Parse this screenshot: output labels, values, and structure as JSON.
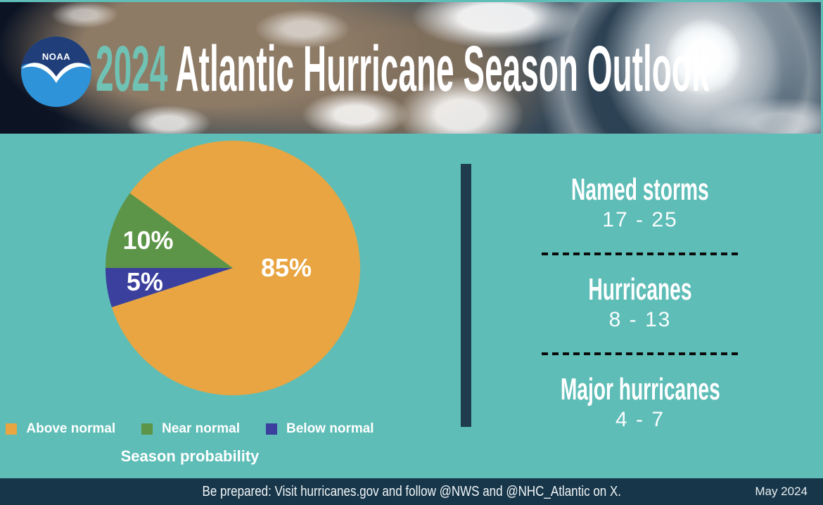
{
  "header": {
    "logo_text": "NOAA",
    "title_year": "2024",
    "title_rest": " Atlantic Hurricane Season Outlook",
    "year_color": "#6FC2B4",
    "title_color": "#FFFFFF"
  },
  "chart_data": {
    "type": "pie",
    "title": "Season probability",
    "slices": [
      {
        "label": "Above normal",
        "value": 85,
        "display": "85%",
        "color": "#E8A541"
      },
      {
        "label": "Near normal",
        "value": 10,
        "display": "10%",
        "color": "#5C9547"
      },
      {
        "label": "Below normal",
        "value": 5,
        "display": "5%",
        "color": "#3B3F9D"
      }
    ],
    "start_angle_deg": 162,
    "direction": "clockwise",
    "legend_position": "bottom",
    "label_color": "#FFFFFF"
  },
  "stats": {
    "items": [
      {
        "label": "Named storms",
        "range": "17 - 25"
      },
      {
        "label": "Hurricanes",
        "range": "8 - 13"
      },
      {
        "label": "Major hurricanes",
        "range": "4 - 7"
      }
    ]
  },
  "footer": {
    "message": "Be prepared: Visit hurricanes.gov and follow @NWS and @NHC_Atlantic on X.",
    "date": "May 2024"
  },
  "colors": {
    "background_teal": "#5EBDB7",
    "divider_navy": "#1E3C4E",
    "footer_navy": "#17364A",
    "dotted_separator": "#0B0B0B",
    "logo_dark_blue": "#1F3E7A",
    "logo_light_blue": "#2E93D8"
  }
}
